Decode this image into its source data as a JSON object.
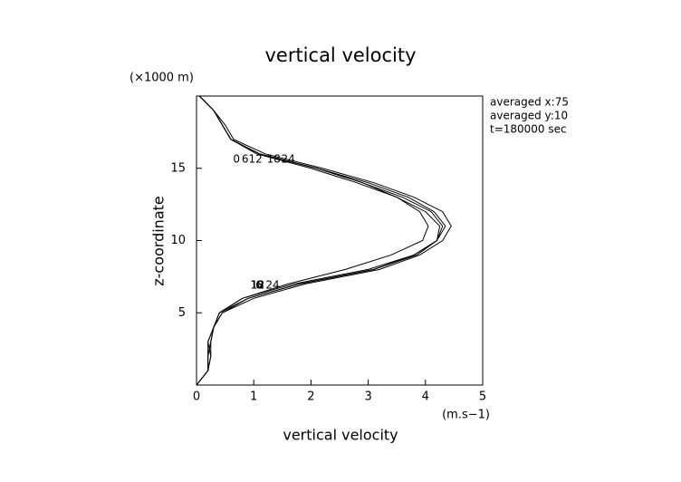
{
  "chart_data": {
    "type": "profile",
    "title": "vertical velocity",
    "x_label": "vertical velocity",
    "x_unit": "(m.s−1)",
    "y_label": "z-coordinate",
    "y_unit": "(×1000 m)",
    "annotations": [
      "averaged  x:75",
      "averaged  y:10",
      "t=180000 sec"
    ],
    "y": [
      0,
      1,
      2,
      3,
      4,
      5,
      6,
      7,
      8,
      9,
      10,
      11,
      12,
      13,
      14,
      15,
      16,
      17,
      18,
      19,
      20
    ],
    "series": [
      {
        "name": "0",
        "color": "#000000",
        "values": [
          0,
          0.2,
          0.25,
          0.25,
          0.3,
          0.45,
          1.0,
          1.9,
          3.2,
          3.9,
          4.3,
          4.45,
          4.3,
          3.8,
          3.1,
          2.2,
          1.2,
          0.65,
          0.5,
          0.3,
          0.05
        ]
      },
      {
        "name": "6",
        "color": "#000000",
        "values": [
          0,
          0.2,
          0.2,
          0.25,
          0.3,
          0.4,
          0.9,
          1.8,
          3.1,
          3.8,
          4.2,
          4.3,
          4.1,
          3.6,
          2.9,
          2.1,
          1.1,
          0.6,
          0.45,
          0.3,
          0.05
        ]
      },
      {
        "name": "12",
        "color": "#000000",
        "values": [
          0,
          0.2,
          0.2,
          0.2,
          0.3,
          0.4,
          0.8,
          1.7,
          3.0,
          3.8,
          4.2,
          4.25,
          4.0,
          3.5,
          2.8,
          2.0,
          1.05,
          0.6,
          0.45,
          0.3,
          0.05
        ]
      },
      {
        "name": "18",
        "color": "#000000",
        "values": [
          0,
          0.2,
          0.25,
          0.2,
          0.3,
          0.4,
          0.8,
          1.6,
          2.6,
          3.4,
          3.95,
          4.05,
          3.9,
          3.5,
          2.9,
          2.1,
          1.1,
          0.6,
          0.45,
          0.3,
          0.05
        ]
      },
      {
        "name": "24",
        "color": "#000000",
        "values": [
          0,
          0.2,
          0.2,
          0.25,
          0.3,
          0.45,
          0.9,
          1.8,
          3.1,
          3.85,
          4.2,
          4.35,
          4.15,
          3.7,
          3.0,
          2.1,
          1.1,
          0.6,
          0.45,
          0.3,
          0.05
        ]
      }
    ],
    "xlim": [
      0,
      5
    ],
    "xticks": [
      0,
      1,
      2,
      3,
      4,
      5
    ],
    "ylim": [
      0,
      20
    ],
    "yticks": [
      5,
      10,
      15
    ]
  }
}
